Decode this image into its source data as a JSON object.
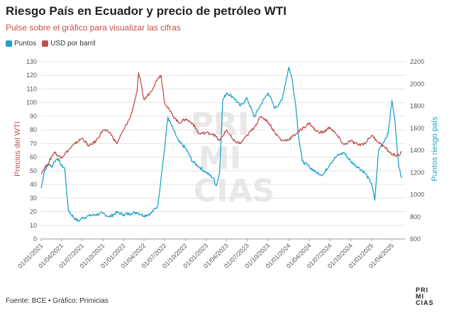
{
  "header": {
    "title": "Riesgo País en Ecuador y precio de petróleo WTI",
    "subtitle": "Pulse sobre el gráfico para visualizar las cifras"
  },
  "footer": {
    "source": "Fuente: BCE • Gráfico: Primicias"
  },
  "logo": {
    "line1": "PRI",
    "line2": "MI",
    "line3": "CIAS"
  },
  "watermark": {
    "line1": "PRI",
    "line2": "MI",
    "line3": "CIAS"
  },
  "chart_data": {
    "type": "line",
    "legend_placement": "top-left",
    "grid": "horizontal",
    "xlabel": "",
    "ylabel_left": "Precios del WTI",
    "ylabel_right": "Puntos riesgo país",
    "ylim_left": [
      0,
      130
    ],
    "ylim_right": [
      600,
      2200
    ],
    "yticks_left": [
      0,
      10,
      20,
      30,
      40,
      50,
      60,
      70,
      80,
      90,
      100,
      110,
      120,
      130
    ],
    "yticks_right": [
      600,
      800,
      1000,
      1200,
      1400,
      1600,
      1800,
      2000,
      2200
    ],
    "x_tick_labels": [
      "01/01/2021",
      "01/04/2021",
      "01/07/2021",
      "01/10/2021",
      "01/01/2022",
      "01/04/2022",
      "01/07/2022",
      "01/10/2022",
      "01/01/2023",
      "01/04/2023",
      "01/07/2023",
      "01/10/2023",
      "01/01/2024",
      "01/04/2024",
      "01/07/2024",
      "01/10/2024",
      "01/01/2025",
      "01/04/2025"
    ],
    "series": [
      {
        "name": "Puntos",
        "axis": "right",
        "color": "#1fa3c9",
        "points": [
          [
            "01/01/2021",
            1060
          ],
          [
            "15/01/2021",
            1210
          ],
          [
            "01/02/2021",
            1280
          ],
          [
            "15/02/2021",
            1250
          ],
          [
            "01/03/2021",
            1300
          ],
          [
            "15/03/2021",
            1330
          ],
          [
            "01/04/2021",
            1260
          ],
          [
            "15/04/2021",
            1240
          ],
          [
            "01/05/2021",
            860
          ],
          [
            "15/05/2021",
            820
          ],
          [
            "01/06/2021",
            780
          ],
          [
            "15/06/2021",
            760
          ],
          [
            "01/07/2021",
            790
          ],
          [
            "01/08/2021",
            810
          ],
          [
            "01/09/2021",
            820
          ],
          [
            "01/10/2021",
            830
          ],
          [
            "01/11/2021",
            800
          ],
          [
            "01/12/2021",
            840
          ],
          [
            "01/01/2022",
            820
          ],
          [
            "01/02/2022",
            830
          ],
          [
            "01/03/2022",
            840
          ],
          [
            "01/04/2022",
            810
          ],
          [
            "01/05/2022",
            830
          ],
          [
            "01/06/2022",
            900
          ],
          [
            "15/06/2022",
            1150
          ],
          [
            "01/07/2022",
            1420
          ],
          [
            "15/07/2022",
            1700
          ],
          [
            "01/08/2022",
            1620
          ],
          [
            "01/09/2022",
            1480
          ],
          [
            "01/10/2022",
            1420
          ],
          [
            "01/11/2022",
            1300
          ],
          [
            "01/12/2022",
            1250
          ],
          [
            "01/01/2023",
            1200
          ],
          [
            "01/02/2023",
            1150
          ],
          [
            "15/02/2023",
            1080
          ],
          [
            "01/03/2023",
            1200
          ],
          [
            "15/03/2023",
            1850
          ],
          [
            "01/04/2023",
            1920
          ],
          [
            "01/05/2023",
            1880
          ],
          [
            "01/06/2023",
            1800
          ],
          [
            "01/07/2023",
            1870
          ],
          [
            "01/08/2023",
            1700
          ],
          [
            "01/09/2023",
            1820
          ],
          [
            "01/10/2023",
            1920
          ],
          [
            "01/11/2023",
            1780
          ],
          [
            "01/12/2023",
            1850
          ],
          [
            "01/01/2024",
            2150
          ],
          [
            "15/01/2024",
            2050
          ],
          [
            "01/02/2024",
            1800
          ],
          [
            "15/02/2024",
            1500
          ],
          [
            "01/03/2024",
            1300
          ],
          [
            "01/04/2024",
            1250
          ],
          [
            "01/05/2024",
            1200
          ],
          [
            "01/06/2024",
            1180
          ],
          [
            "01/07/2024",
            1280
          ],
          [
            "01/08/2024",
            1350
          ],
          [
            "01/09/2024",
            1380
          ],
          [
            "01/10/2024",
            1300
          ],
          [
            "01/11/2024",
            1250
          ],
          [
            "01/12/2024",
            1200
          ],
          [
            "01/01/2025",
            1100
          ],
          [
            "15/01/2025",
            950
          ],
          [
            "01/02/2025",
            1400
          ],
          [
            "01/03/2025",
            1500
          ],
          [
            "15/03/2025",
            1550
          ],
          [
            "01/04/2025",
            1850
          ],
          [
            "15/04/2025",
            1650
          ],
          [
            "01/05/2025",
            1250
          ],
          [
            "15/05/2025",
            1150
          ]
        ]
      },
      {
        "name": "USD por barril",
        "axis": "left",
        "color": "#c0504d",
        "points": [
          [
            "01/01/2021",
            48
          ],
          [
            "15/01/2021",
            52
          ],
          [
            "01/02/2021",
            55
          ],
          [
            "15/02/2021",
            60
          ],
          [
            "01/03/2021",
            64
          ],
          [
            "15/03/2021",
            61
          ],
          [
            "01/04/2021",
            60
          ],
          [
            "01/05/2021",
            65
          ],
          [
            "01/06/2021",
            70
          ],
          [
            "01/07/2021",
            74
          ],
          [
            "01/08/2021",
            68
          ],
          [
            "01/09/2021",
            72
          ],
          [
            "01/10/2021",
            80
          ],
          [
            "01/11/2021",
            78
          ],
          [
            "01/12/2021",
            70
          ],
          [
            "01/01/2022",
            80
          ],
          [
            "01/02/2022",
            90
          ],
          [
            "01/03/2022",
            108
          ],
          [
            "08/03/2022",
            122
          ],
          [
            "01/04/2022",
            102
          ],
          [
            "01/05/2022",
            108
          ],
          [
            "01/06/2022",
            118
          ],
          [
            "15/06/2022",
            120
          ],
          [
            "01/07/2022",
            100
          ],
          [
            "01/08/2022",
            92
          ],
          [
            "01/09/2022",
            85
          ],
          [
            "01/10/2022",
            88
          ],
          [
            "01/11/2022",
            85
          ],
          [
            "01/12/2022",
            77
          ],
          [
            "01/01/2023",
            78
          ],
          [
            "01/02/2023",
            77
          ],
          [
            "01/03/2023",
            72
          ],
          [
            "01/04/2023",
            80
          ],
          [
            "01/05/2023",
            72
          ],
          [
            "01/06/2023",
            70
          ],
          [
            "01/07/2023",
            76
          ],
          [
            "01/08/2023",
            82
          ],
          [
            "01/09/2023",
            90
          ],
          [
            "01/10/2023",
            86
          ],
          [
            "01/11/2023",
            78
          ],
          [
            "01/12/2023",
            72
          ],
          [
            "01/01/2024",
            73
          ],
          [
            "01/02/2024",
            77
          ],
          [
            "01/03/2024",
            81
          ],
          [
            "01/04/2024",
            85
          ],
          [
            "01/05/2024",
            79
          ],
          [
            "01/06/2024",
            78
          ],
          [
            "01/07/2024",
            82
          ],
          [
            "01/08/2024",
            76
          ],
          [
            "01/09/2024",
            69
          ],
          [
            "01/10/2024",
            72
          ],
          [
            "01/11/2024",
            69
          ],
          [
            "01/12/2024",
            70
          ],
          [
            "01/01/2025",
            76
          ],
          [
            "01/02/2025",
            71
          ],
          [
            "01/03/2025",
            67
          ],
          [
            "01/04/2025",
            62
          ],
          [
            "01/05/2025",
            61
          ],
          [
            "15/05/2025",
            64
          ]
        ]
      }
    ]
  }
}
